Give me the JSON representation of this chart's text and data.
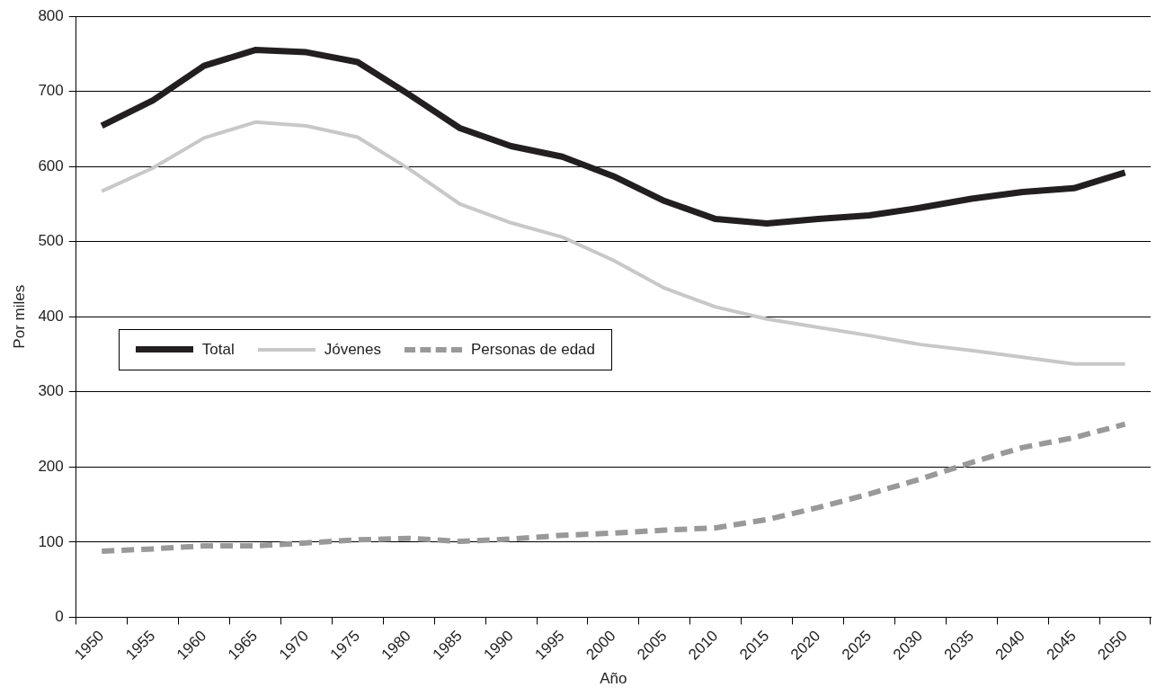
{
  "chart_data": {
    "type": "line",
    "xlabel": "Año",
    "ylabel": "Por miles",
    "categories": [
      "1950",
      "1955",
      "1960",
      "1965",
      "1970",
      "1975",
      "1980",
      "1985",
      "1990",
      "1995",
      "2000",
      "2005",
      "2010",
      "2015",
      "2020",
      "2025",
      "2030",
      "2035",
      "2040",
      "2045",
      "2050"
    ],
    "series": [
      {
        "name": "Total",
        "color": "#231f20",
        "line_style": "solid",
        "values": [
          654,
          688,
          734,
          755,
          752,
          739,
          696,
          651,
          627,
          613,
          587,
          554,
          530,
          524,
          530,
          535,
          545,
          557,
          566,
          571,
          592
        ]
      },
      {
        "name": "Jóvenes",
        "color": "#c8c8c8",
        "line_style": "solid",
        "values": [
          567,
          598,
          638,
          659,
          654,
          639,
          597,
          550,
          525,
          506,
          475,
          438,
          413,
          397,
          386,
          375,
          363,
          355,
          346,
          337,
          337
        ]
      },
      {
        "name": "Personas de edad",
        "color": "#999999",
        "line_style": "dashed",
        "values": [
          88,
          91,
          95,
          95,
          99,
          103,
          105,
          101,
          104,
          109,
          112,
          116,
          119,
          130,
          146,
          164,
          184,
          206,
          226,
          239,
          257
        ]
      }
    ],
    "ylim": [
      0,
      800
    ],
    "yticks": [
      0,
      100,
      200,
      300,
      400,
      500,
      600,
      700,
      800
    ],
    "grid": "y",
    "legend": "left",
    "marker": "none"
  }
}
